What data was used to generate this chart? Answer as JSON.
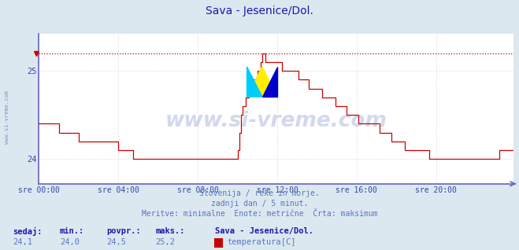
{
  "title": "Sava - Jesenice/Dol.",
  "title_color": "#1a1aaa",
  "title_fontsize": 10,
  "bg_color": "#dce8f0",
  "plot_bg_color": "#ffffff",
  "grid_color": "#ddbdbd",
  "axis_color": "#6666bb",
  "line_color": "#cc0000",
  "dashed_line_color": "#cc0000",
  "xaxis_label_color": "#3344aa",
  "yaxis_label_color": "#3344aa",
  "watermark": "www.si-vreme.com",
  "watermark_color": "#3355aa",
  "watermark_alpha": 0.22,
  "subtitle_lines": [
    "Slovenija / reke in morje.",
    "zadnji dan / 5 minut.",
    "Meritve: minimalne  Enote: metrične  Črta: maksimum"
  ],
  "subtitle_color": "#5577bb",
  "subtitle_fontsize": 7,
  "footer_labels": [
    "sedaj:",
    "min.:",
    "povpr.:",
    "maks.:"
  ],
  "footer_values": [
    "24,1",
    "24,0",
    "24,5",
    "25,2"
  ],
  "footer_series_name": "Sava - Jesenice/Dol.",
  "footer_measure": "temperatura[C]",
  "footer_label_color": "#1a1aaa",
  "footer_value_color": "#5577cc",
  "legend_color": "#cc0000",
  "ylim_min": 23.72,
  "ylim_max": 25.42,
  "ytick_vals": [
    24,
    25
  ],
  "max_line_y": 25.2,
  "xtick_labels": [
    "sre 00:00",
    "sre 04:00",
    "sre 08:00",
    "sre 12:00",
    "sre 16:00",
    "sre 20:00"
  ],
  "xtick_positions": [
    0,
    48,
    96,
    144,
    192,
    240
  ],
  "total_points": 288,
  "left_watermark": "www.si-vreme.com",
  "left_watermark_color": "#6688bb",
  "temperature_data": [
    24.4,
    24.4,
    24.4,
    24.4,
    24.4,
    24.4,
    24.4,
    24.4,
    24.4,
    24.4,
    24.4,
    24.4,
    24.3,
    24.3,
    24.3,
    24.3,
    24.3,
    24.3,
    24.3,
    24.3,
    24.3,
    24.3,
    24.3,
    24.3,
    24.2,
    24.2,
    24.2,
    24.2,
    24.2,
    24.2,
    24.2,
    24.2,
    24.2,
    24.2,
    24.2,
    24.2,
    24.2,
    24.2,
    24.2,
    24.2,
    24.2,
    24.2,
    24.2,
    24.2,
    24.2,
    24.2,
    24.2,
    24.2,
    24.1,
    24.1,
    24.1,
    24.1,
    24.1,
    24.1,
    24.1,
    24.1,
    24.1,
    24.0,
    24.0,
    24.0,
    24.0,
    24.0,
    24.0,
    24.0,
    24.0,
    24.0,
    24.0,
    24.0,
    24.0,
    24.0,
    24.0,
    24.0,
    24.0,
    24.0,
    24.0,
    24.0,
    24.0,
    24.0,
    24.0,
    24.0,
    24.0,
    24.0,
    24.0,
    24.0,
    24.0,
    24.0,
    24.0,
    24.0,
    24.0,
    24.0,
    24.0,
    24.0,
    24.0,
    24.0,
    24.0,
    24.0,
    24.0,
    24.0,
    24.0,
    24.0,
    24.0,
    24.0,
    24.0,
    24.0,
    24.0,
    24.0,
    24.0,
    24.0,
    24.0,
    24.0,
    24.0,
    24.0,
    24.0,
    24.0,
    24.0,
    24.0,
    24.0,
    24.0,
    24.0,
    24.0,
    24.1,
    24.3,
    24.5,
    24.6,
    24.6,
    24.7,
    24.7,
    24.8,
    24.8,
    24.9,
    24.9,
    24.9,
    25.0,
    25.0,
    25.1,
    25.2,
    25.2,
    25.1,
    25.1,
    25.1,
    25.1,
    25.1,
    25.1,
    25.1,
    25.1,
    25.1,
    25.1,
    25.0,
    25.0,
    25.0,
    25.0,
    25.0,
    25.0,
    25.0,
    25.0,
    25.0,
    25.0,
    24.9,
    24.9,
    24.9,
    24.9,
    24.9,
    24.9,
    24.8,
    24.8,
    24.8,
    24.8,
    24.8,
    24.8,
    24.8,
    24.8,
    24.7,
    24.7,
    24.7,
    24.7,
    24.7,
    24.7,
    24.7,
    24.7,
    24.6,
    24.6,
    24.6,
    24.6,
    24.6,
    24.6,
    24.6,
    24.5,
    24.5,
    24.5,
    24.5,
    24.5,
    24.5,
    24.5,
    24.4,
    24.4,
    24.4,
    24.4,
    24.4,
    24.4,
    24.4,
    24.4,
    24.4,
    24.4,
    24.4,
    24.4,
    24.4,
    24.3,
    24.3,
    24.3,
    24.3,
    24.3,
    24.3,
    24.3,
    24.2,
    24.2,
    24.2,
    24.2,
    24.2,
    24.2,
    24.2,
    24.2,
    24.1,
    24.1,
    24.1,
    24.1,
    24.1,
    24.1,
    24.1,
    24.1,
    24.1,
    24.1,
    24.1,
    24.1,
    24.1,
    24.1,
    24.1,
    24.0,
    24.0,
    24.0,
    24.0,
    24.0,
    24.0,
    24.0,
    24.0,
    24.0,
    24.0,
    24.0,
    24.0,
    24.0,
    24.0,
    24.0,
    24.0,
    24.0,
    24.0,
    24.0,
    24.0,
    24.0,
    24.0,
    24.0,
    24.0,
    24.0,
    24.0,
    24.0,
    24.0,
    24.0,
    24.0,
    24.0,
    24.0,
    24.0,
    24.0,
    24.0,
    24.0,
    24.0,
    24.0,
    24.0,
    24.0,
    24.0,
    24.0,
    24.1,
    24.1,
    24.1,
    24.1,
    24.1,
    24.1,
    24.1,
    24.1,
    24.1,
    24.1,
    24.1,
    24.1
  ]
}
